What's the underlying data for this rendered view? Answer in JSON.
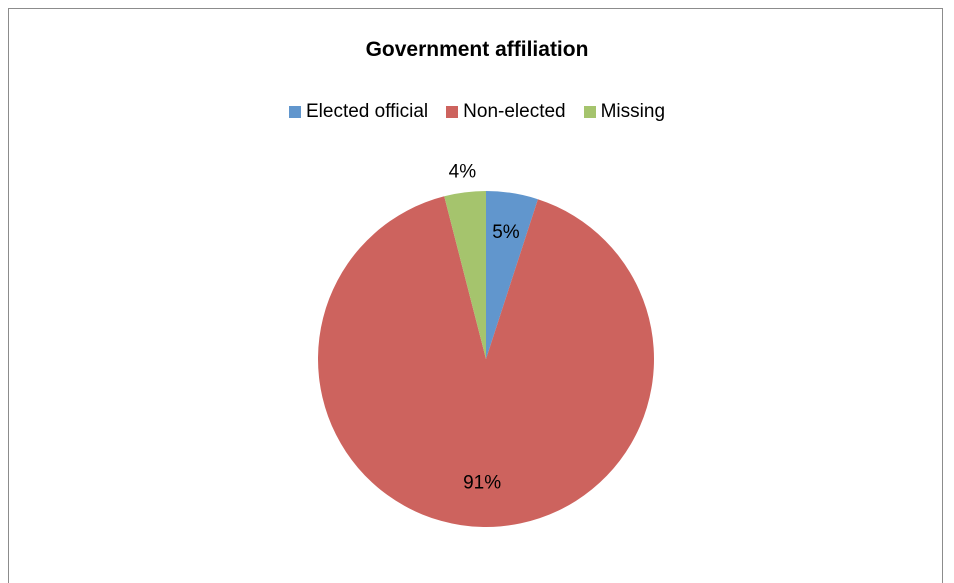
{
  "chart_data": {
    "type": "pie",
    "title": "Government affiliation",
    "legend_position": "top",
    "categories": [
      "Elected official",
      "Non-elected",
      "Missing"
    ],
    "values": [
      5,
      91,
      4
    ],
    "data_labels": [
      "5%",
      "91%",
      "4%"
    ],
    "colors": [
      "#6196cd",
      "#cd635e",
      "#a5c46d"
    ]
  }
}
